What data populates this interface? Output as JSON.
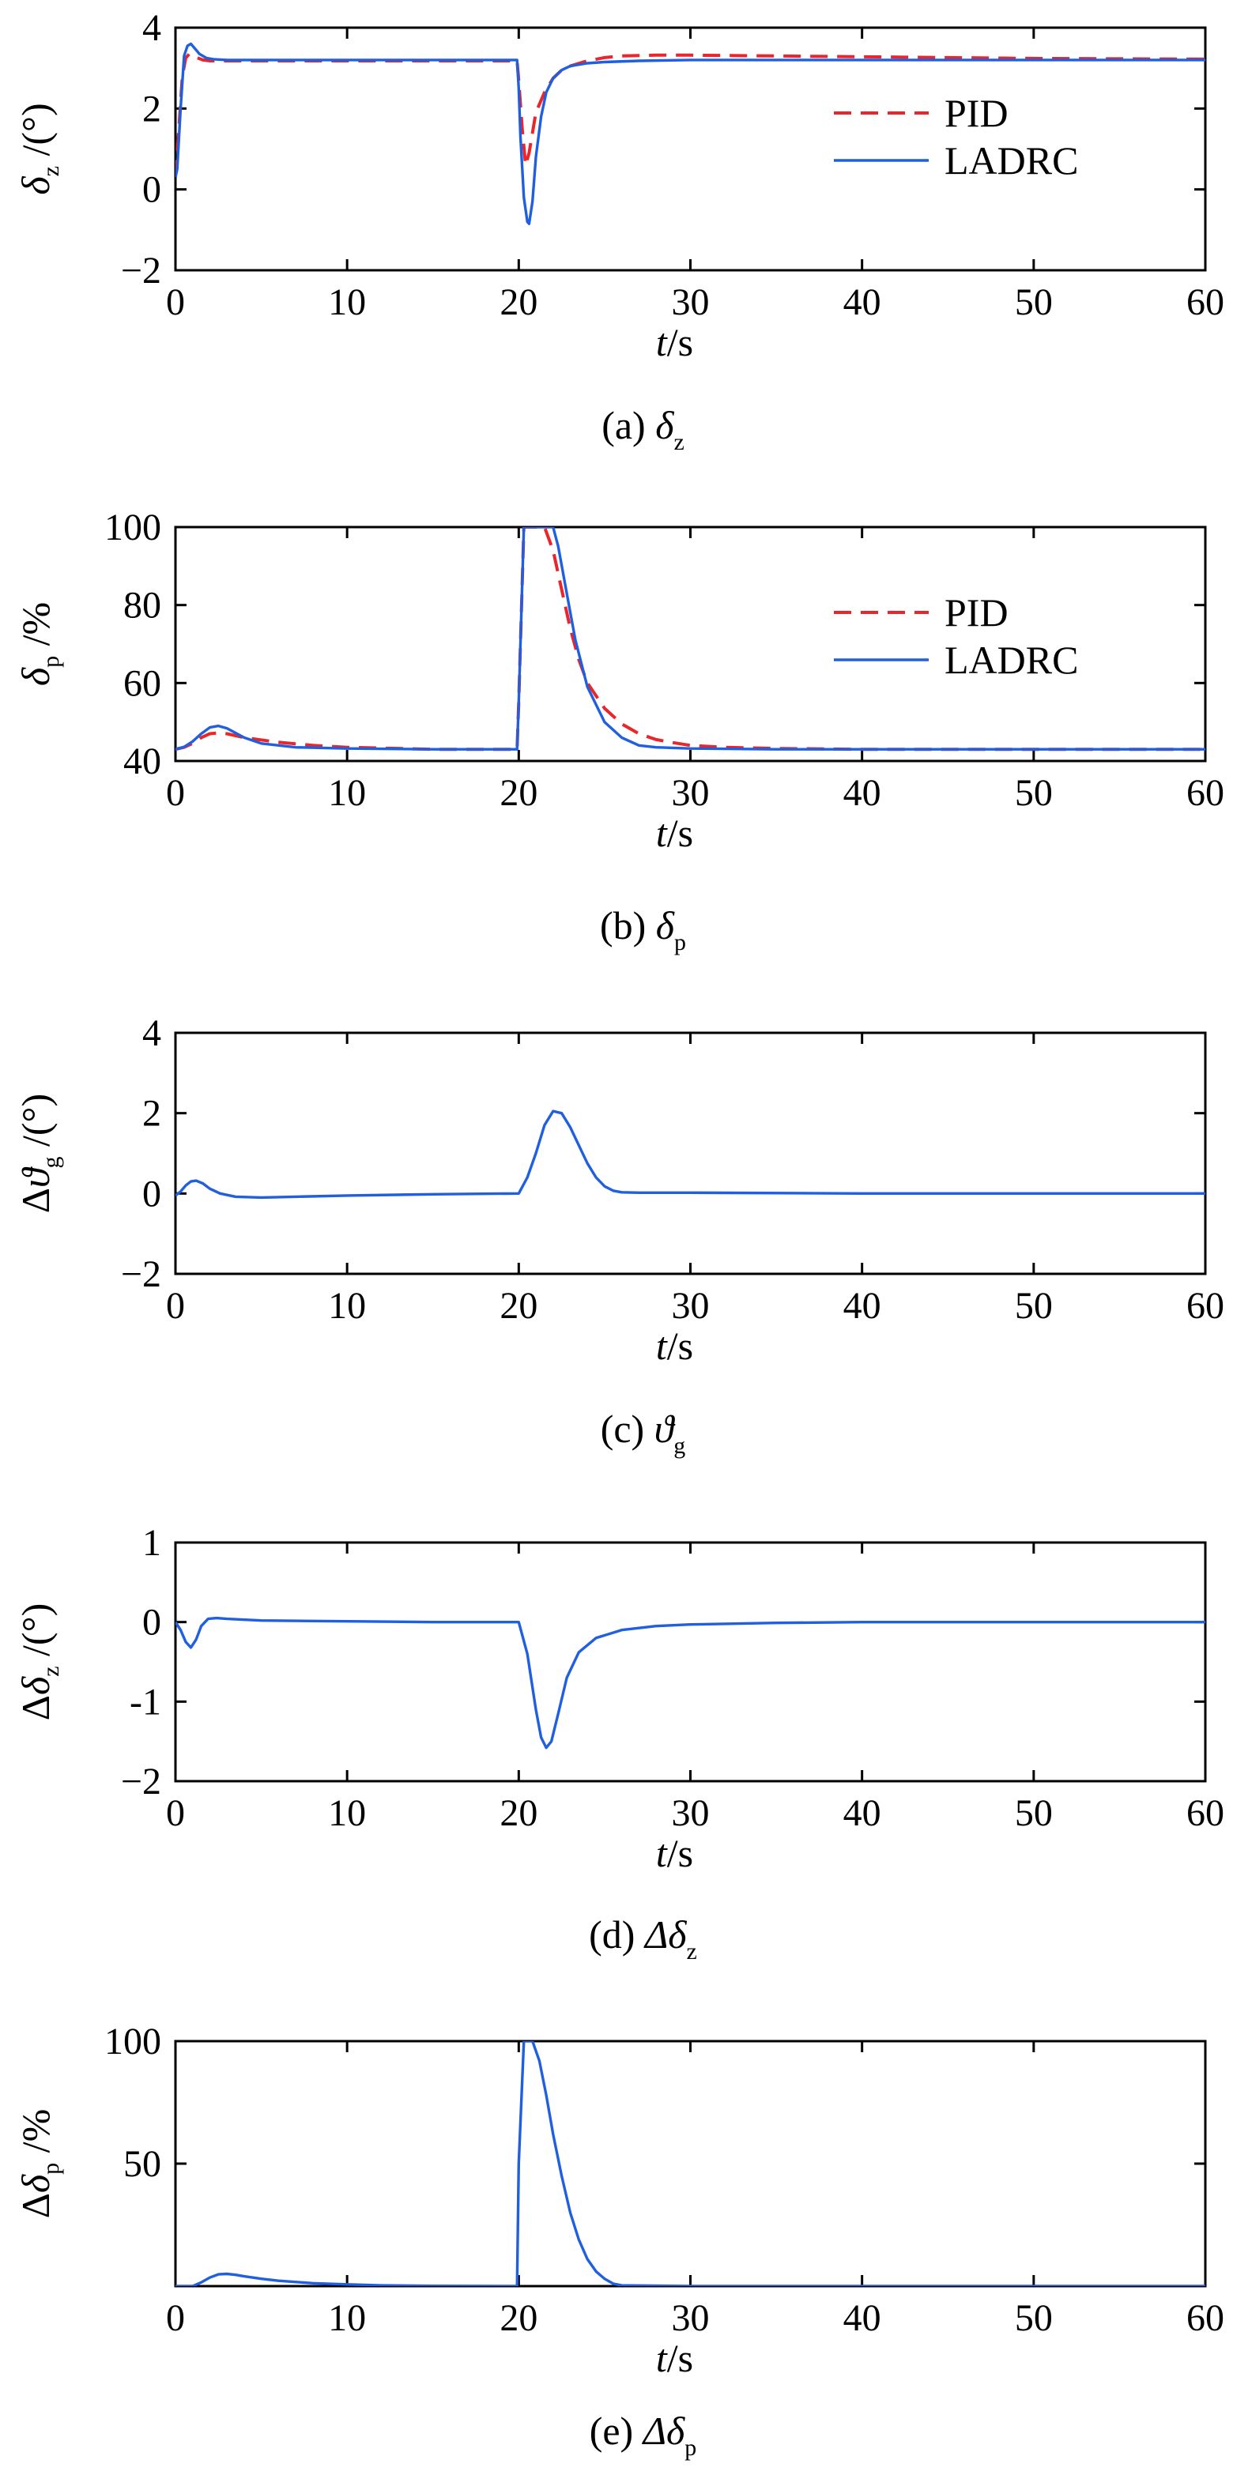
{
  "figure": {
    "panel_count": 5
  },
  "colors": {
    "pid": "#e8262b",
    "ladrc": "#1f5fe0",
    "axis": "#000000"
  },
  "chart_data": [
    {
      "id": "a",
      "type": "line",
      "caption_prefix": "(a)",
      "caption_symbol": "δ",
      "caption_sub": "z",
      "ylabel_prefix": "",
      "ylabel_symbol": "δ",
      "ylabel_sub": "z",
      "ylabel_unit": "/(°)",
      "xlabel_var": "t",
      "xlabel_unit": "/s",
      "xlim": [
        0,
        60
      ],
      "ylim": [
        -2,
        4
      ],
      "xticks": [
        0,
        10,
        20,
        30,
        40,
        50,
        60
      ],
      "yticks": [
        -2,
        0,
        2,
        4
      ],
      "ytick_labels": [
        "−2",
        "0",
        "2",
        "4"
      ],
      "legend": [
        "PID",
        "LADRC"
      ],
      "legend_position": "top-right",
      "series": [
        {
          "name": "PID",
          "style": "dashed",
          "x": [
            0,
            0.2,
            0.4,
            0.6,
            0.8,
            1.0,
            1.3,
            1.6,
            2,
            3,
            5,
            10,
            15,
            19.9,
            20.0,
            20.2,
            20.4,
            20.6,
            20.8,
            21,
            21.5,
            22,
            22.5,
            23,
            24,
            25,
            26,
            28,
            30,
            35,
            40,
            45,
            50,
            55,
            60
          ],
          "y": [
            0.3,
            1.5,
            2.8,
            3.25,
            3.35,
            3.3,
            3.25,
            3.2,
            3.18,
            3.18,
            3.18,
            3.18,
            3.18,
            3.18,
            2.7,
            1.5,
            0.6,
            0.9,
            1.4,
            1.9,
            2.4,
            2.75,
            2.95,
            3.05,
            3.18,
            3.26,
            3.3,
            3.32,
            3.32,
            3.3,
            3.28,
            3.26,
            3.24,
            3.23,
            3.22
          ]
        },
        {
          "name": "LADRC",
          "style": "solid",
          "x": [
            0,
            0.1,
            0.3,
            0.5,
            0.7,
            0.9,
            1.1,
            1.4,
            1.8,
            2.2,
            3,
            5,
            10,
            15,
            19.9,
            20.0,
            20.1,
            20.3,
            20.5,
            20.6,
            20.8,
            21,
            21.3,
            21.6,
            22,
            22.5,
            23,
            24,
            25,
            27,
            30,
            35,
            40,
            50,
            60
          ],
          "y": [
            0.3,
            0.5,
            2.0,
            3.3,
            3.55,
            3.6,
            3.5,
            3.35,
            3.25,
            3.22,
            3.2,
            3.2,
            3.2,
            3.2,
            3.2,
            2.5,
            1.3,
            -0.2,
            -0.8,
            -0.85,
            -0.3,
            0.8,
            1.8,
            2.4,
            2.75,
            2.95,
            3.05,
            3.12,
            3.15,
            3.18,
            3.2,
            3.2,
            3.2,
            3.2,
            3.2
          ]
        }
      ]
    },
    {
      "id": "b",
      "type": "line",
      "caption_prefix": "(b)",
      "caption_symbol": "δ",
      "caption_sub": "p",
      "ylabel_prefix": "",
      "ylabel_symbol": "δ",
      "ylabel_sub": "p",
      "ylabel_unit": "/%",
      "xlabel_var": "t",
      "xlabel_unit": "/s",
      "xlim": [
        0,
        60
      ],
      "ylim": [
        40,
        100
      ],
      "xticks": [
        0,
        10,
        20,
        30,
        40,
        50,
        60
      ],
      "yticks": [
        40,
        60,
        80,
        100
      ],
      "ytick_labels": [
        "40",
        "60",
        "80",
        "100"
      ],
      "legend": [
        "PID",
        "LADRC"
      ],
      "legend_position": "top-right",
      "series": [
        {
          "name": "PID",
          "style": "dashed",
          "x": [
            0,
            0.5,
            1,
            1.5,
            2,
            2.5,
            3,
            4,
            6,
            8,
            10,
            15,
            19.9,
            20.0,
            20.3,
            21.5,
            22,
            22.5,
            23,
            23.5,
            24,
            25,
            26,
            27,
            28,
            29,
            30,
            32,
            35,
            40,
            50,
            60
          ],
          "y": [
            43,
            43.5,
            44.5,
            46,
            47,
            47.2,
            47,
            46,
            44.8,
            44,
            43.5,
            43,
            43,
            55,
            100,
            100,
            94,
            84,
            74,
            66,
            60,
            53.5,
            49.5,
            47,
            45.5,
            44.7,
            44,
            43.5,
            43.2,
            43,
            43,
            43
          ]
        },
        {
          "name": "LADRC",
          "style": "solid",
          "x": [
            0,
            0.5,
            1,
            1.5,
            2,
            2.5,
            3,
            3.5,
            4,
            5,
            7,
            10,
            15,
            19.9,
            20.0,
            20.3,
            22,
            22.3,
            22.8,
            23.3,
            24,
            25,
            26,
            27,
            28,
            30,
            35,
            40,
            50,
            60
          ],
          "y": [
            43,
            43.6,
            45,
            47,
            48.6,
            49,
            48.4,
            47.2,
            46,
            44.5,
            43.5,
            43.2,
            43,
            43,
            55,
            100,
            100,
            95,
            83,
            71,
            59,
            50,
            46,
            44,
            43.5,
            43.2,
            43,
            43,
            43,
            43
          ]
        }
      ]
    },
    {
      "id": "c",
      "type": "line",
      "caption_prefix": "(c)",
      "caption_symbol": "ϑ",
      "caption_sub": "g",
      "ylabel_prefix": "Δ",
      "ylabel_symbol": "ϑ",
      "ylabel_sub": "g",
      "ylabel_unit": "/(°)",
      "xlabel_var": "t",
      "xlabel_unit": "/s",
      "xlim": [
        0,
        60
      ],
      "ylim": [
        -2,
        4
      ],
      "xticks": [
        0,
        10,
        20,
        30,
        40,
        50,
        60
      ],
      "yticks": [
        -2,
        0,
        2,
        4
      ],
      "ytick_labels": [
        "−2",
        "0",
        "2",
        "4"
      ],
      "legend": [],
      "series": [
        {
          "name": "LADRC",
          "style": "solid",
          "x": [
            0,
            0.3,
            0.6,
            0.9,
            1.2,
            1.6,
            2,
            2.6,
            3.5,
            5,
            7,
            10,
            15,
            20,
            20.5,
            21,
            21.5,
            22,
            22.5,
            23,
            23.5,
            24,
            24.5,
            25,
            25.5,
            26,
            27,
            30,
            40,
            50,
            60
          ],
          "y": [
            -0.05,
            0.05,
            0.2,
            0.3,
            0.32,
            0.25,
            0.12,
            0.0,
            -0.08,
            -0.1,
            -0.08,
            -0.05,
            -0.02,
            0,
            0.4,
            1.0,
            1.7,
            2.05,
            2.0,
            1.65,
            1.2,
            0.75,
            0.4,
            0.18,
            0.07,
            0.03,
            0.02,
            0.02,
            0,
            0,
            0
          ]
        }
      ]
    },
    {
      "id": "d",
      "type": "line",
      "caption_prefix": "(d)",
      "caption_symbol": "Δδ",
      "caption_sub": "z",
      "ylabel_prefix": "Δ",
      "ylabel_symbol": "δ",
      "ylabel_sub": "z",
      "ylabel_unit": "/(°)",
      "xlabel_var": "t",
      "xlabel_unit": "/s",
      "xlim": [
        0,
        60
      ],
      "ylim": [
        -2,
        1
      ],
      "xticks": [
        0,
        10,
        20,
        30,
        40,
        50,
        60
      ],
      "yticks": [
        -2,
        -1,
        0,
        1
      ],
      "ytick_labels": [
        "−2",
        "-1",
        "0",
        "1"
      ],
      "legend": [],
      "series": [
        {
          "name": "LADRC",
          "style": "solid",
          "x": [
            0,
            0.3,
            0.6,
            0.9,
            1.2,
            1.5,
            1.9,
            2.4,
            3,
            5,
            10,
            15,
            20,
            20.5,
            21,
            21.3,
            21.6,
            21.9,
            22.3,
            22.8,
            23.5,
            24.5,
            26,
            28,
            30,
            35,
            40,
            50,
            60
          ],
          "y": [
            0,
            -0.1,
            -0.25,
            -0.32,
            -0.22,
            -0.05,
            0.04,
            0.05,
            0.04,
            0.02,
            0.01,
            0.0,
            0,
            -0.4,
            -1.1,
            -1.45,
            -1.58,
            -1.5,
            -1.15,
            -0.7,
            -0.38,
            -0.2,
            -0.1,
            -0.05,
            -0.03,
            -0.01,
            0,
            0,
            0
          ]
        }
      ]
    },
    {
      "id": "e",
      "type": "line",
      "caption_prefix": "(e)",
      "caption_symbol": "Δδ",
      "caption_sub": "p",
      "ylabel_prefix": "Δ",
      "ylabel_symbol": "δ",
      "ylabel_sub": "p",
      "ylabel_unit": "/%",
      "xlabel_var": "t",
      "xlabel_unit": "/s",
      "xlim": [
        0,
        60
      ],
      "ylim": [
        0,
        100
      ],
      "xticks": [
        0,
        10,
        20,
        30,
        40,
        50,
        60
      ],
      "yticks": [
        50,
        100
      ],
      "ytick_labels": [
        "50",
        "100"
      ],
      "legend": [],
      "series": [
        {
          "name": "LADRC",
          "style": "solid",
          "x": [
            0,
            1,
            1.5,
            2,
            2.5,
            3,
            3.5,
            4,
            5,
            6,
            8,
            10,
            12,
            15,
            19.9,
            20.0,
            20.3,
            20.8,
            21.2,
            21.6,
            22,
            22.5,
            23,
            23.5,
            24,
            24.5,
            25,
            25.5,
            26,
            30,
            40,
            50,
            60
          ],
          "y": [
            0,
            0,
            1.5,
            3.5,
            4.8,
            5,
            4.6,
            4,
            3,
            2.2,
            1.2,
            0.7,
            0.3,
            0.1,
            0,
            50,
            100,
            100,
            92,
            78,
            62,
            45,
            30,
            19,
            11,
            6,
            3,
            1,
            0.3,
            0,
            0,
            0,
            0
          ]
        }
      ]
    }
  ]
}
